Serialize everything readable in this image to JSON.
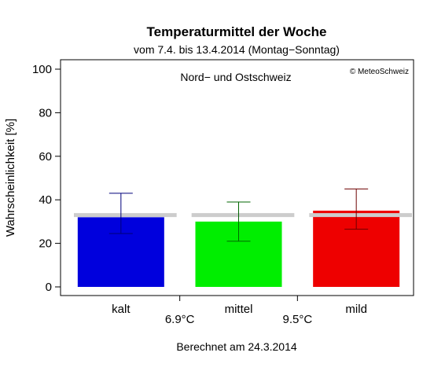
{
  "chart_data": {
    "type": "bar",
    "title": "Temperaturmittel der Woche",
    "subtitle": "vom 7.4. bis 13.4.2014 (Montag−Sonntag)",
    "ylabel": "Wahrscheinlichkeit [%]",
    "ylim": [
      0,
      100
    ],
    "yticks": [
      "0",
      "20",
      "40",
      "60",
      "80",
      "100"
    ],
    "region": "Nord− und Ostschweiz",
    "copyright": "© MeteoSchweiz",
    "footer": "Berechnet am 24.3.2014",
    "climatology": 33,
    "categories": [
      "kalt",
      "mittel",
      "mild"
    ],
    "values": [
      32,
      30,
      35
    ],
    "error_low": [
      24.5,
      21,
      26.5
    ],
    "error_high": [
      43,
      39,
      45
    ],
    "colors": [
      "#0000dd",
      "#00ee00",
      "#ee0000"
    ],
    "error_colors": [
      "#00007a",
      "#006600",
      "#6e0000"
    ],
    "reference_color": "#cccccc",
    "thresholds": [
      "6.9°C",
      "9.5°C"
    ],
    "grid": false
  }
}
